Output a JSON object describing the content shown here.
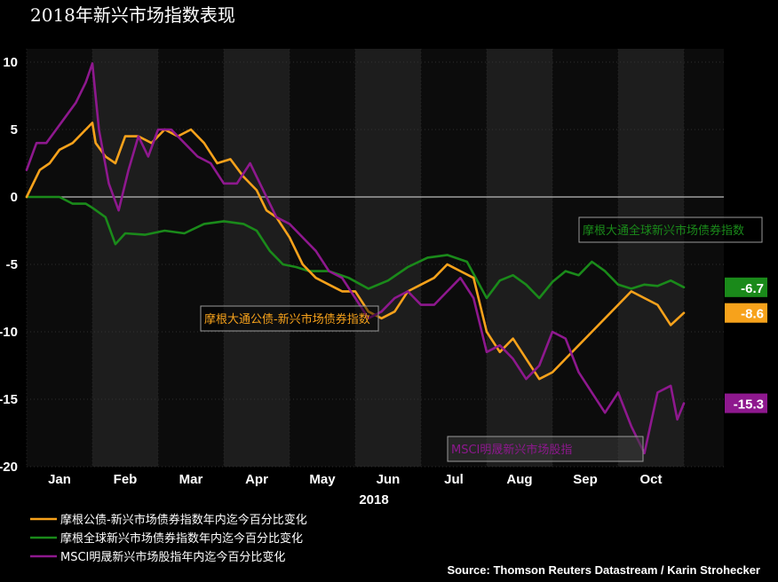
{
  "title": "2018年新兴市场指数表现",
  "source": "Source: Thomson Reuters Datastream / Karin Strohecker",
  "chart_data": {
    "type": "line",
    "title": "2018年新兴市场指数表现",
    "year_label": "2018",
    "xlabel": "",
    "ylabel": "",
    "ylim": [
      -20,
      10
    ],
    "yticks": [
      "10",
      "5",
      "0",
      "-5",
      "-10",
      "-15",
      "-20"
    ],
    "ytick_values": [
      10,
      5,
      0,
      -5,
      -10,
      -15,
      -20
    ],
    "xlim": [
      0,
      10
    ],
    "months": [
      "Jan",
      "Feb",
      "Mar",
      "Apr",
      "May",
      "Jun",
      "Jul",
      "Aug",
      "Sep",
      "Oct"
    ],
    "grid": true,
    "legend_position": "bottom-left",
    "series": [
      {
        "name": "摩根公债-新兴市场债券指数年内迄今百分比变化",
        "color": "#f7a21b",
        "end_label": "-8.6",
        "inline_label": "摩根大通公债-新兴市场债券指数",
        "x": [
          0,
          0.2,
          0.35,
          0.5,
          0.7,
          0.9,
          1.0,
          1.05,
          1.2,
          1.35,
          1.5,
          1.7,
          1.9,
          2.1,
          2.3,
          2.5,
          2.7,
          2.9,
          3.1,
          3.3,
          3.5,
          3.65,
          3.8,
          4.0,
          4.2,
          4.4,
          4.6,
          4.8,
          5.0,
          5.2,
          5.4,
          5.6,
          5.8,
          6.0,
          6.2,
          6.4,
          6.6,
          6.8,
          7.0,
          7.2,
          7.4,
          7.6,
          7.8,
          8.0,
          8.2,
          8.4,
          8.6,
          8.8,
          9.0,
          9.2,
          9.4,
          9.6,
          9.8,
          10.0
        ],
        "y": [
          0,
          2,
          2.5,
          3.5,
          4,
          5,
          5.5,
          4,
          3,
          2.5,
          4.5,
          4.5,
          4,
          5,
          4.5,
          5,
          4,
          2.5,
          2.8,
          1.5,
          0.5,
          -1,
          -1.5,
          -3,
          -5,
          -6,
          -6.5,
          -7,
          -7,
          -8.5,
          -9,
          -8.5,
          -7,
          -6.5,
          -6,
          -5,
          -5.5,
          -6,
          -10,
          -11.5,
          -10.5,
          -12,
          -13.5,
          -13,
          -12,
          -11,
          -10,
          -9,
          -8,
          -7,
          -7.5,
          -8,
          -9.5,
          -8.6
        ]
      },
      {
        "name": "摩根全球新兴市场债券指数年内迄今百分比变化",
        "color": "#1a8a1a",
        "end_label": "-6.7",
        "inline_label": "摩根大通全球新兴市场债券指数",
        "x": [
          0,
          0.3,
          0.5,
          0.7,
          0.9,
          1.0,
          1.2,
          1.35,
          1.5,
          1.8,
          2.1,
          2.4,
          2.7,
          3.0,
          3.3,
          3.5,
          3.7,
          3.9,
          4.1,
          4.3,
          4.6,
          4.9,
          5.2,
          5.5,
          5.8,
          6.1,
          6.4,
          6.7,
          7.0,
          7.2,
          7.4,
          7.6,
          7.8,
          8.0,
          8.2,
          8.4,
          8.6,
          8.8,
          9.0,
          9.2,
          9.4,
          9.6,
          9.8,
          10.0
        ],
        "y": [
          0,
          0,
          0,
          -0.5,
          -0.5,
          -0.8,
          -1.5,
          -3.5,
          -2.7,
          -2.8,
          -2.5,
          -2.7,
          -2,
          -1.8,
          -2,
          -2.5,
          -4,
          -5,
          -5.2,
          -5.5,
          -5.5,
          -6,
          -6.8,
          -6.2,
          -5.2,
          -4.5,
          -4.3,
          -4.8,
          -7.5,
          -6.2,
          -5.8,
          -6.5,
          -7.5,
          -6.3,
          -5.5,
          -5.8,
          -4.8,
          -5.5,
          -6.5,
          -6.8,
          -6.5,
          -6.6,
          -6.2,
          -6.7
        ]
      },
      {
        "name": "MSCI明晟新兴市场股指年内迄今百分比变化",
        "color": "#8e188e",
        "end_label": "-15.3",
        "inline_label": "MSCI明晟新兴市场股指",
        "x": [
          0,
          0.15,
          0.3,
          0.45,
          0.6,
          0.75,
          0.9,
          1.0,
          1.1,
          1.25,
          1.4,
          1.55,
          1.7,
          1.85,
          2.0,
          2.2,
          2.4,
          2.6,
          2.8,
          3.0,
          3.2,
          3.4,
          3.6,
          3.8,
          4.0,
          4.2,
          4.4,
          4.6,
          4.8,
          5.0,
          5.2,
          5.4,
          5.6,
          5.8,
          6.0,
          6.2,
          6.4,
          6.6,
          6.8,
          7.0,
          7.2,
          7.4,
          7.6,
          7.8,
          8.0,
          8.2,
          8.4,
          8.6,
          8.8,
          9.0,
          9.2,
          9.4,
          9.6,
          9.8,
          9.9,
          10.0
        ],
        "y": [
          2,
          4,
          4,
          5,
          6,
          7,
          8.5,
          9.9,
          5,
          1,
          -1,
          2,
          4.5,
          3,
          5,
          5,
          4,
          3,
          2.5,
          1,
          1,
          2.5,
          0.5,
          -1.5,
          -2,
          -3,
          -4,
          -5.5,
          -6,
          -7.5,
          -9,
          -8.5,
          -7.5,
          -7,
          -8,
          -8,
          -7,
          -6,
          -7.5,
          -11.5,
          -11,
          -12,
          -13.5,
          -12.5,
          -10,
          -10.5,
          -13,
          -14.5,
          -16,
          -14.5,
          -17,
          -19,
          -14.5,
          -14,
          -16.5,
          -15.3
        ]
      }
    ]
  }
}
